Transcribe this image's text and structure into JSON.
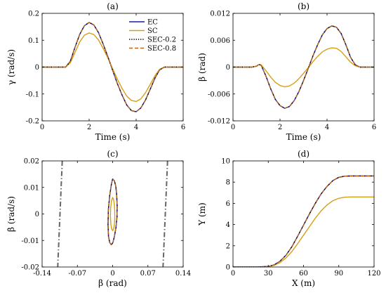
{
  "chart_data": [
    {
      "type": "line",
      "panel_label": "(a)",
      "xlabel": "Time (s)",
      "ylabel": "γ (rad/s)",
      "xlim": [
        0,
        6
      ],
      "ylim": [
        -0.2,
        0.2
      ],
      "xticks": [
        0,
        2,
        4,
        6
      ],
      "xtick_labels": [
        "0",
        "2",
        "4",
        "6"
      ],
      "yticks": [
        -0.2,
        -0.1,
        0,
        0.1,
        0.2
      ],
      "ytick_labels": [
        "-0.2",
        "-0.1",
        "0",
        "0.1",
        "0.2"
      ],
      "legend": {
        "position": "top-right"
      },
      "series": [
        {
          "name": "EC",
          "color": "#1a1aa6",
          "style": "solid",
          "x": [
            0,
            0.5,
            1.0,
            1.2,
            1.4,
            1.6,
            1.8,
            2.0,
            2.2,
            2.4,
            2.6,
            2.8,
            3.0,
            3.2,
            3.4,
            3.6,
            3.8,
            4.0,
            4.2,
            4.4,
            4.6,
            4.8,
            5.0,
            5.2,
            5.4,
            6.0
          ],
          "y": [
            0,
            0,
            0,
            0.022,
            0.074,
            0.122,
            0.154,
            0.166,
            0.157,
            0.128,
            0.085,
            0.038,
            -0.012,
            -0.061,
            -0.104,
            -0.141,
            -0.162,
            -0.166,
            -0.152,
            -0.122,
            -0.082,
            -0.041,
            -0.01,
            0,
            0,
            0
          ]
        },
        {
          "name": "SC",
          "color": "#d4a017",
          "style": "solid",
          "x": [
            0,
            0.5,
            1.0,
            1.2,
            1.4,
            1.6,
            1.8,
            2.0,
            2.2,
            2.4,
            2.6,
            2.8,
            3.0,
            3.2,
            3.4,
            3.6,
            3.8,
            4.0,
            4.2,
            4.4,
            4.6,
            4.8,
            5.0,
            5.2,
            5.4,
            6.0
          ],
          "y": [
            0,
            0,
            0,
            0.016,
            0.055,
            0.094,
            0.119,
            0.127,
            0.121,
            0.101,
            0.069,
            0.033,
            -0.006,
            -0.045,
            -0.079,
            -0.108,
            -0.124,
            -0.128,
            -0.118,
            -0.095,
            -0.064,
            -0.032,
            -0.008,
            0,
            0,
            0
          ]
        },
        {
          "name": "SEC-0.2",
          "color": "#000000",
          "style": "dotted",
          "x": [
            0,
            0.5,
            1.0,
            1.2,
            1.4,
            1.6,
            1.8,
            2.0,
            2.2,
            2.4,
            2.6,
            2.8,
            3.0,
            3.2,
            3.4,
            3.6,
            3.8,
            4.0,
            4.2,
            4.4,
            4.6,
            4.8,
            5.0,
            5.2,
            5.4,
            6.0
          ],
          "y": [
            0,
            0,
            0,
            0.022,
            0.074,
            0.122,
            0.154,
            0.166,
            0.157,
            0.128,
            0.085,
            0.038,
            -0.012,
            -0.061,
            -0.104,
            -0.141,
            -0.162,
            -0.166,
            -0.152,
            -0.122,
            -0.082,
            -0.041,
            -0.01,
            0,
            0,
            0
          ]
        },
        {
          "name": "SEC-0.8",
          "color": "#b5651d",
          "style": "dashed",
          "x": [
            0,
            0.5,
            1.0,
            1.2,
            1.4,
            1.6,
            1.8,
            2.0,
            2.2,
            2.4,
            2.6,
            2.8,
            3.0,
            3.2,
            3.4,
            3.6,
            3.8,
            4.0,
            4.2,
            4.4,
            4.6,
            4.8,
            5.0,
            5.2,
            5.4,
            6.0
          ],
          "y": [
            0,
            0,
            0,
            0.022,
            0.074,
            0.122,
            0.154,
            0.166,
            0.157,
            0.128,
            0.085,
            0.038,
            -0.012,
            -0.061,
            -0.104,
            -0.141,
            -0.162,
            -0.166,
            -0.152,
            -0.122,
            -0.082,
            -0.041,
            -0.01,
            0,
            0,
            0
          ]
        }
      ]
    },
    {
      "type": "line",
      "panel_label": "(b)",
      "xlabel": "Time (s)",
      "ylabel": "β (rad)",
      "xlim": [
        0,
        6
      ],
      "ylim": [
        -0.012,
        0.012
      ],
      "xticks": [
        0,
        2,
        4,
        6
      ],
      "xtick_labels": [
        "0",
        "2",
        "4",
        "6"
      ],
      "yticks": [
        -0.012,
        -0.006,
        0,
        0.006,
        0.012
      ],
      "ytick_labels": [
        "-0.012",
        "-0.006",
        "0",
        "0.006",
        "0.012"
      ],
      "series": [
        {
          "name": "EC",
          "color": "#1a1aa6",
          "style": "solid",
          "x": [
            0,
            0.8,
            1.0,
            1.1,
            1.2,
            1.4,
            1.6,
            1.8,
            2.0,
            2.2,
            2.4,
            2.6,
            2.8,
            3.0,
            3.2,
            3.4,
            3.6,
            3.8,
            4.0,
            4.2,
            4.4,
            4.6,
            4.8,
            5.0,
            5.2,
            5.4,
            6.0
          ],
          "y": [
            0,
            0,
            0.0002,
            0.0006,
            0.0004,
            -0.002,
            -0.0048,
            -0.0072,
            -0.0086,
            -0.0092,
            -0.0088,
            -0.0075,
            -0.0055,
            -0.003,
            -0.0003,
            0.0025,
            0.005,
            0.0072,
            0.0086,
            0.0092,
            0.0089,
            0.0075,
            0.005,
            0.0022,
            0.0005,
            0,
            0
          ]
        },
        {
          "name": "SC",
          "color": "#d4a017",
          "style": "solid",
          "x": [
            0,
            0.8,
            1.0,
            1.1,
            1.2,
            1.4,
            1.6,
            1.8,
            2.0,
            2.2,
            2.4,
            2.6,
            2.8,
            3.0,
            3.2,
            3.4,
            3.6,
            3.8,
            4.0,
            4.2,
            4.4,
            4.6,
            4.8,
            5.0,
            5.2,
            5.4,
            6.0
          ],
          "y": [
            0,
            0,
            0.0002,
            0.0006,
            0.0005,
            -0.0008,
            -0.0022,
            -0.0034,
            -0.0041,
            -0.0044,
            -0.0042,
            -0.0036,
            -0.0026,
            -0.0014,
            -0.0001,
            0.0012,
            0.0024,
            0.0034,
            0.004,
            0.0043,
            0.0042,
            0.0035,
            0.0023,
            0.0011,
            0.0003,
            0,
            0
          ]
        },
        {
          "name": "SEC-0.2",
          "color": "#000000",
          "style": "dotted",
          "x": [
            0,
            0.8,
            1.0,
            1.1,
            1.2,
            1.4,
            1.6,
            1.8,
            2.0,
            2.2,
            2.4,
            2.6,
            2.8,
            3.0,
            3.2,
            3.4,
            3.6,
            3.8,
            4.0,
            4.2,
            4.4,
            4.6,
            4.8,
            5.0,
            5.2,
            5.4,
            6.0
          ],
          "y": [
            0,
            0,
            0.0002,
            0.0006,
            0.0004,
            -0.002,
            -0.0048,
            -0.0072,
            -0.0086,
            -0.0092,
            -0.0088,
            -0.0075,
            -0.0055,
            -0.003,
            -0.0003,
            0.0025,
            0.005,
            0.0072,
            0.0086,
            0.0092,
            0.0089,
            0.0075,
            0.005,
            0.0022,
            0.0005,
            0,
            0
          ]
        },
        {
          "name": "SEC-0.8",
          "color": "#b5651d",
          "style": "dashed",
          "x": [
            0,
            0.8,
            1.0,
            1.1,
            1.2,
            1.4,
            1.6,
            1.8,
            2.0,
            2.2,
            2.4,
            2.6,
            2.8,
            3.0,
            3.2,
            3.4,
            3.6,
            3.8,
            4.0,
            4.2,
            4.4,
            4.6,
            4.8,
            5.0,
            5.2,
            5.4,
            6.0
          ],
          "y": [
            0,
            0,
            0.0002,
            0.0006,
            0.0004,
            -0.002,
            -0.0048,
            -0.0072,
            -0.0086,
            -0.0092,
            -0.0088,
            -0.0075,
            -0.0055,
            -0.003,
            -0.0003,
            0.0025,
            0.005,
            0.0072,
            0.0086,
            0.0092,
            0.0089,
            0.0075,
            0.005,
            0.0022,
            0.0005,
            0,
            0
          ]
        }
      ]
    },
    {
      "type": "line",
      "panel_label": "(c)",
      "xlabel": "β (rad)",
      "ylabel": "β̇ (rad/s)",
      "xlim": [
        -0.14,
        0.14
      ],
      "ylim": [
        -0.02,
        0.02
      ],
      "xticks": [
        -0.14,
        -0.07,
        0,
        0.07,
        0.14
      ],
      "xtick_labels": [
        "-0.14",
        "-0.07",
        "0",
        "0.07",
        "0.14"
      ],
      "yticks": [
        -0.02,
        -0.01,
        0,
        0.01,
        0.02
      ],
      "ytick_labels": [
        "-0.02",
        "-0.01",
        "0",
        "0.01",
        "0.02"
      ],
      "series": [
        {
          "name": "EC",
          "color": "#1a1aa6",
          "style": "solid",
          "closed": true,
          "x": [
            0,
            0.0035,
            0.0062,
            0.008,
            0.009,
            0.0086,
            0.0065,
            0.0035,
            0.0005,
            -0.0028,
            -0.0058,
            -0.0082,
            -0.0092,
            -0.0085,
            -0.0058,
            -0.0025,
            0
          ],
          "y": [
            0.0132,
            0.0125,
            0.0105,
            0.0072,
            0.003,
            -0.0012,
            -0.0052,
            -0.0085,
            -0.0108,
            -0.0116,
            -0.0108,
            -0.0085,
            -0.004,
            0.0015,
            0.007,
            0.0112,
            0.0132
          ]
        },
        {
          "name": "SC",
          "color": "#d4a017",
          "style": "solid",
          "closed": true,
          "x": [
            0,
            0.0018,
            0.0032,
            0.0041,
            0.0043,
            0.0036,
            0.002,
            0,
            -0.002,
            -0.0036,
            -0.0044,
            -0.004,
            -0.0025,
            0
          ],
          "y": [
            0.0062,
            0.0055,
            0.0038,
            0.0015,
            -0.0012,
            -0.0038,
            -0.0056,
            -0.0063,
            -0.0056,
            -0.0038,
            -0.0008,
            0.0022,
            0.0048,
            0.0062
          ]
        },
        {
          "name": "SEC-0.2",
          "color": "#000000",
          "style": "dotted",
          "closed": true,
          "x": [
            0,
            0.0035,
            0.0062,
            0.008,
            0.009,
            0.0086,
            0.0065,
            0.0035,
            0.0005,
            -0.0028,
            -0.0058,
            -0.0082,
            -0.0092,
            -0.0085,
            -0.0058,
            -0.0025,
            0
          ],
          "y": [
            0.0132,
            0.0125,
            0.0105,
            0.0072,
            0.003,
            -0.0012,
            -0.0052,
            -0.0085,
            -0.0108,
            -0.0116,
            -0.0108,
            -0.0085,
            -0.004,
            0.0015,
            0.007,
            0.0112,
            0.0132
          ]
        },
        {
          "name": "SEC-0.8",
          "color": "#b5651d",
          "style": "dashed",
          "closed": true,
          "x": [
            0,
            0.0035,
            0.0062,
            0.008,
            0.009,
            0.0086,
            0.0065,
            0.0035,
            0.0005,
            -0.0028,
            -0.0058,
            -0.0082,
            -0.0092,
            -0.0085,
            -0.0058,
            -0.0025,
            0
          ],
          "y": [
            0.0132,
            0.0125,
            0.0105,
            0.0072,
            0.003,
            -0.0012,
            -0.0052,
            -0.0085,
            -0.0108,
            -0.0116,
            -0.0108,
            -0.0085,
            -0.004,
            0.0015,
            0.007,
            0.0112,
            0.0132
          ]
        }
      ],
      "stability_bounds": [
        {
          "color": "#666666",
          "style": "dashdot",
          "x": [
            -0.1,
            -0.109
          ],
          "y": [
            0.02,
            -0.02
          ]
        },
        {
          "color": "#666666",
          "style": "dashdot",
          "x": [
            0.109,
            0.1
          ],
          "y": [
            0.02,
            -0.02
          ]
        }
      ]
    },
    {
      "type": "line",
      "panel_label": "(d)",
      "xlabel": "X (m)",
      "ylabel": "Y (m)",
      "xlim": [
        0,
        120
      ],
      "ylim": [
        0,
        10
      ],
      "xticks": [
        0,
        30,
        60,
        90,
        120
      ],
      "xtick_labels": [
        "0",
        "30",
        "60",
        "90",
        "120"
      ],
      "yticks": [
        0,
        2,
        4,
        6,
        8,
        10
      ],
      "ytick_labels": [
        "0",
        "2",
        "4",
        "6",
        "8",
        "10"
      ],
      "series": [
        {
          "name": "EC",
          "color": "#1a1aa6",
          "style": "solid",
          "x": [
            0,
            20,
            30,
            35,
            40,
            45,
            50,
            55,
            60,
            65,
            70,
            75,
            80,
            85,
            90,
            95,
            100,
            105,
            120
          ],
          "y": [
            0,
            0,
            0.05,
            0.2,
            0.55,
            1.1,
            1.9,
            2.9,
            3.95,
            5.0,
            6.0,
            6.9,
            7.6,
            8.15,
            8.45,
            8.56,
            8.58,
            8.58,
            8.58
          ]
        },
        {
          "name": "SC",
          "color": "#d4a017",
          "style": "solid",
          "x": [
            0,
            20,
            30,
            35,
            40,
            45,
            50,
            55,
            60,
            65,
            70,
            75,
            80,
            85,
            90,
            95,
            100,
            105,
            120
          ],
          "y": [
            0,
            0,
            0.04,
            0.16,
            0.42,
            0.85,
            1.45,
            2.2,
            3.0,
            3.8,
            4.6,
            5.3,
            5.85,
            6.25,
            6.48,
            6.58,
            6.6,
            6.6,
            6.6
          ]
        },
        {
          "name": "SEC-0.2",
          "color": "#000000",
          "style": "dotted",
          "x": [
            0,
            20,
            30,
            35,
            40,
            45,
            50,
            55,
            60,
            65,
            70,
            75,
            80,
            85,
            90,
            95,
            100,
            105,
            120
          ],
          "y": [
            0,
            0,
            0.05,
            0.2,
            0.55,
            1.1,
            1.9,
            2.9,
            3.95,
            5.0,
            6.0,
            6.9,
            7.6,
            8.15,
            8.45,
            8.56,
            8.58,
            8.58,
            8.58
          ]
        },
        {
          "name": "SEC-0.8",
          "color": "#b5651d",
          "style": "dashed",
          "x": [
            0,
            20,
            30,
            35,
            40,
            45,
            50,
            55,
            60,
            65,
            70,
            75,
            80,
            85,
            90,
            95,
            100,
            105,
            120
          ],
          "y": [
            0,
            0,
            0.05,
            0.2,
            0.55,
            1.1,
            1.9,
            2.9,
            3.95,
            5.0,
            6.0,
            6.9,
            7.6,
            8.15,
            8.45,
            8.56,
            8.58,
            8.58,
            8.58
          ]
        }
      ]
    }
  ]
}
